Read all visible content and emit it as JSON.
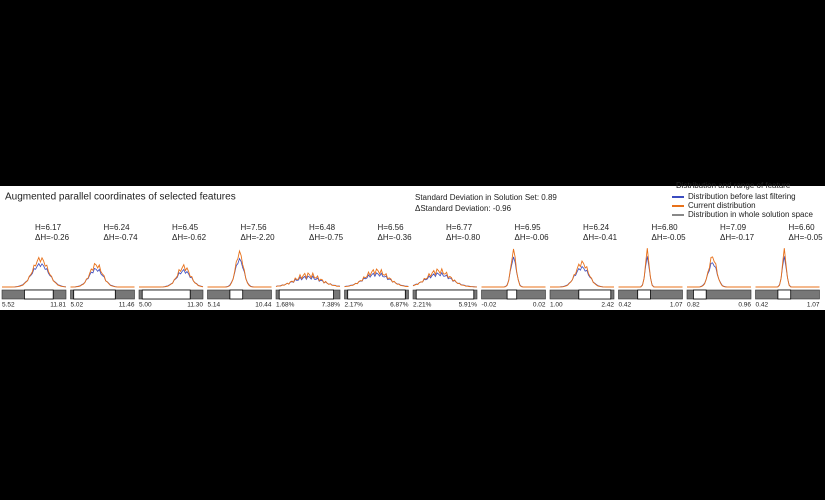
{
  "header": {
    "title": "Augmented parallel coordinates of selected features",
    "stats": [
      "Standard Deviation in Solution Set: 0.89",
      "ΔStandard Deviation: -0.96"
    ]
  },
  "legend": {
    "title": "Distribution and range of feature",
    "entries": [
      {
        "label": "Distribution before last filtering",
        "color": "#3b4cc0"
      },
      {
        "label": "Current distribution",
        "color": "#e8711a"
      },
      {
        "label": "Distribution in whole solution space",
        "color": "#888888"
      }
    ]
  },
  "features": [
    {
      "entropy": "H=6.17",
      "delta": "ΔH=-0.26",
      "min": "5.52",
      "max": "11.81"
    },
    {
      "entropy": "H=6.24",
      "delta": "ΔH=-0.74",
      "min": "5.02",
      "max": "11.46"
    },
    {
      "entropy": "H=6.45",
      "delta": "ΔH=-0.62",
      "min": "5.00",
      "max": "11.30"
    },
    {
      "entropy": "H=7.56",
      "delta": "ΔH=-2.20",
      "min": "5.14",
      "max": "10.44"
    },
    {
      "entropy": "H=6.48",
      "delta": "ΔH=-0.75",
      "min": "1.68%",
      "max": "7.38%"
    },
    {
      "entropy": "H=6.56",
      "delta": "ΔH=-0.36",
      "min": "2.17%",
      "max": "6.87%"
    },
    {
      "entropy": "H=6.77",
      "delta": "ΔH=-0.80",
      "min": "2.21%",
      "max": "5.91%"
    },
    {
      "entropy": "H=6.95",
      "delta": "ΔH=-0.06",
      "min": "-0.02",
      "max": "0.02"
    },
    {
      "entropy": "H=6.24",
      "delta": "ΔH=-0.41",
      "min": "1.00",
      "max": "2.42"
    },
    {
      "entropy": "H=6.80",
      "delta": "ΔH=-0.05",
      "min": "0.42",
      "max": "1.07"
    },
    {
      "entropy": "H=7.09",
      "delta": "ΔH=-0.17",
      "min": "0.82",
      "max": "0.96"
    },
    {
      "entropy": "H=6.60",
      "delta": "ΔH=-0.05",
      "min": "0.42",
      "max": "1.07"
    }
  ]
}
